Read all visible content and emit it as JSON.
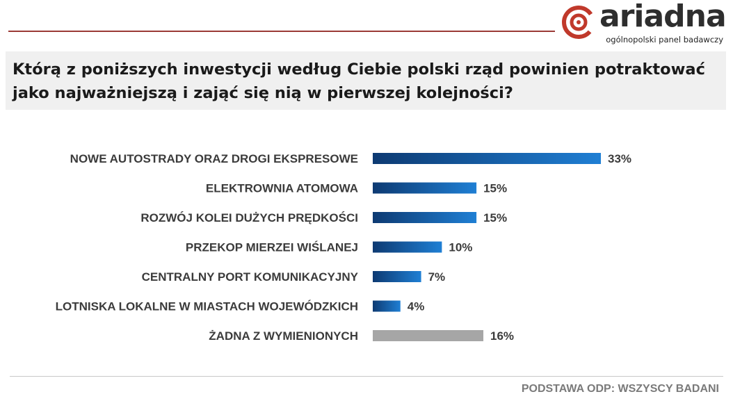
{
  "header": {
    "logo_word": "ariadna",
    "logo_subtitle": "ogólnopolski panel badawczy",
    "brand_color": "#c0392b"
  },
  "question": {
    "text": "Którą z poniższych inwestycji według Ciebie polski rząd powinien potraktować jako najważniejszą i zająć się nią w pierwszej kolejności?"
  },
  "chart_data": {
    "type": "bar",
    "orientation": "horizontal",
    "categories": [
      "NOWE AUTOSTRADY ORAZ DROGI EKSPRESOWE",
      "ELEKTROWNIA ATOMOWA",
      "ROZWÓJ KOLEI DUŻYCH PRĘDKOŚCI",
      "PRZEKOP MIERZEI WIŚLANEJ",
      "CENTRALNY PORT KOMUNIKACYJNY",
      "LOTNISKA LOKALNE W MIASTACH WOJEWÓDZKICH",
      "ŻADNA Z WYMIENIONYCH"
    ],
    "values": [
      33,
      15,
      15,
      10,
      7,
      4,
      16
    ],
    "value_labels": [
      "33%",
      "15%",
      "15%",
      "10%",
      "7%",
      "4%",
      "16%"
    ],
    "highlight": [
      false,
      false,
      false,
      false,
      false,
      false,
      true
    ],
    "bar_color_start": "#0d3a72",
    "bar_color_end": "#1f7fd4",
    "neutral_color": "#a6a6a6",
    "xlim": [
      0,
      33
    ],
    "title": "",
    "xlabel": "",
    "ylabel": ""
  },
  "footer": {
    "base_note": "PODSTAWA ODP: WSZYSCY BADANI"
  }
}
